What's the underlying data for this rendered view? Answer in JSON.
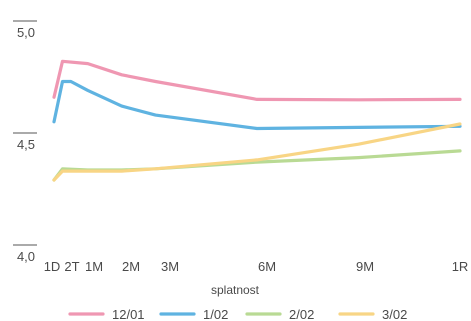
{
  "chart_data": {
    "type": "line",
    "xlabel": "splatnost",
    "ylabel": "",
    "ylim": [
      4.0,
      5.0
    ],
    "y_ticks": [
      "4,0",
      "4,5",
      "5,0"
    ],
    "y_tick_values": [
      4.0,
      4.5,
      5.0
    ],
    "x_ticks": [
      "1D",
      "2T",
      "1M",
      "2M",
      "3M",
      "6M",
      "9M",
      "1R"
    ],
    "x_tick_months": [
      0.033,
      0.47,
      1,
      2,
      3,
      6,
      9,
      12
    ],
    "grid": false,
    "legend_position": "bottom",
    "series": [
      {
        "name": "12/01",
        "color": "#ef97b2",
        "x": [
          0,
          0.25,
          1,
          2,
          3,
          6,
          9,
          12
        ],
        "values": [
          4.66,
          4.82,
          4.81,
          4.76,
          4.73,
          4.65,
          4.648,
          4.65
        ]
      },
      {
        "name": "1/02",
        "color": "#5fb3e1",
        "x": [
          0,
          0.25,
          0.5,
          1,
          2,
          3,
          6,
          9,
          12
        ],
        "values": [
          4.55,
          4.73,
          4.73,
          4.69,
          4.62,
          4.58,
          4.52,
          4.525,
          4.53
        ]
      },
      {
        "name": "2/02",
        "color": "#b9da94",
        "x": [
          0,
          0.25,
          1,
          2,
          3,
          6,
          9,
          12
        ],
        "values": [
          4.29,
          4.34,
          4.335,
          4.335,
          4.34,
          4.37,
          4.39,
          4.42
        ]
      },
      {
        "name": "3/02",
        "color": "#f8d585",
        "x": [
          0,
          0.25,
          1,
          2,
          3,
          6,
          9,
          12
        ],
        "values": [
          4.29,
          4.33,
          4.33,
          4.33,
          4.34,
          4.38,
          4.45,
          4.54
        ]
      }
    ]
  }
}
